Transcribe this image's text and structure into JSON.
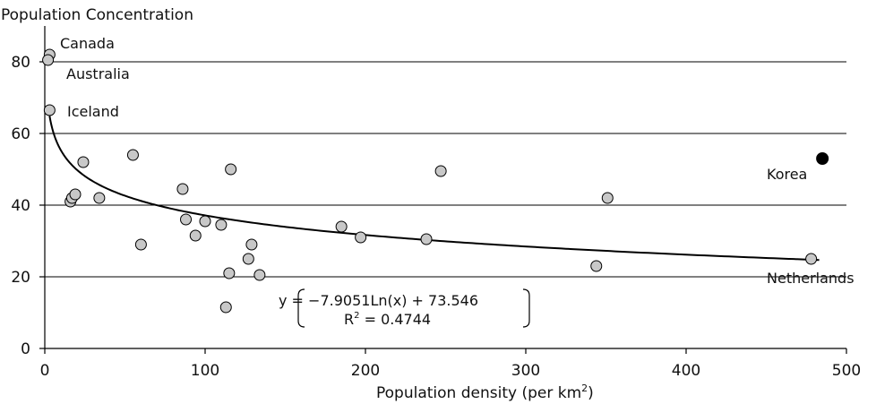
{
  "chart_data": {
    "type": "scatter",
    "title": "",
    "ylabel": "Population Concentration",
    "xlabel": "Population density (per km",
    "xlabel_sup": "2",
    "xlabel_end": ")",
    "xlim": [
      0,
      500
    ],
    "ylim": [
      0,
      90
    ],
    "xticks": [
      0,
      100,
      200,
      300,
      400,
      500
    ],
    "yticks": [
      0,
      20,
      40,
      60,
      80
    ],
    "grid_y": [
      20,
      40,
      60,
      80
    ],
    "points": [
      {
        "x": 3,
        "y": 82
      },
      {
        "x": 2,
        "y": 80.5
      },
      {
        "x": 3,
        "y": 66.5
      },
      {
        "x": 16,
        "y": 41
      },
      {
        "x": 17,
        "y": 42
      },
      {
        "x": 19,
        "y": 43
      },
      {
        "x": 24,
        "y": 52
      },
      {
        "x": 34,
        "y": 42
      },
      {
        "x": 55,
        "y": 54
      },
      {
        "x": 60,
        "y": 29
      },
      {
        "x": 86,
        "y": 44.5
      },
      {
        "x": 88,
        "y": 36
      },
      {
        "x": 94,
        "y": 31.5
      },
      {
        "x": 100,
        "y": 35.5
      },
      {
        "x": 110,
        "y": 34.5
      },
      {
        "x": 113,
        "y": 11.5
      },
      {
        "x": 115,
        "y": 21
      },
      {
        "x": 116,
        "y": 50
      },
      {
        "x": 127,
        "y": 25
      },
      {
        "x": 129,
        "y": 29
      },
      {
        "x": 134,
        "y": 20.5
      },
      {
        "x": 185,
        "y": 34
      },
      {
        "x": 197,
        "y": 31
      },
      {
        "x": 238,
        "y": 30.5
      },
      {
        "x": 247,
        "y": 49.5
      },
      {
        "x": 344,
        "y": 23
      },
      {
        "x": 351,
        "y": 42
      },
      {
        "x": 478,
        "y": 25
      }
    ],
    "highlight_point": {
      "x": 485,
      "y": 53,
      "color": "#000000"
    },
    "point_color": "#c8c8c8",
    "trendline": {
      "a": -7.9051,
      "b": 73.546,
      "x_from": 3,
      "x_to": 483
    },
    "equation_line1": "y = −7.9051Ln(x) + 73.546",
    "equation_line2": "R",
    "equation_line2_sup": "2",
    "equation_line2_end": " = 0.4744",
    "annotations": {
      "canada": "Canada",
      "australia": "Australia",
      "iceland": "Iceland",
      "korea": "Korea",
      "netherlands": "Netherlands"
    }
  }
}
